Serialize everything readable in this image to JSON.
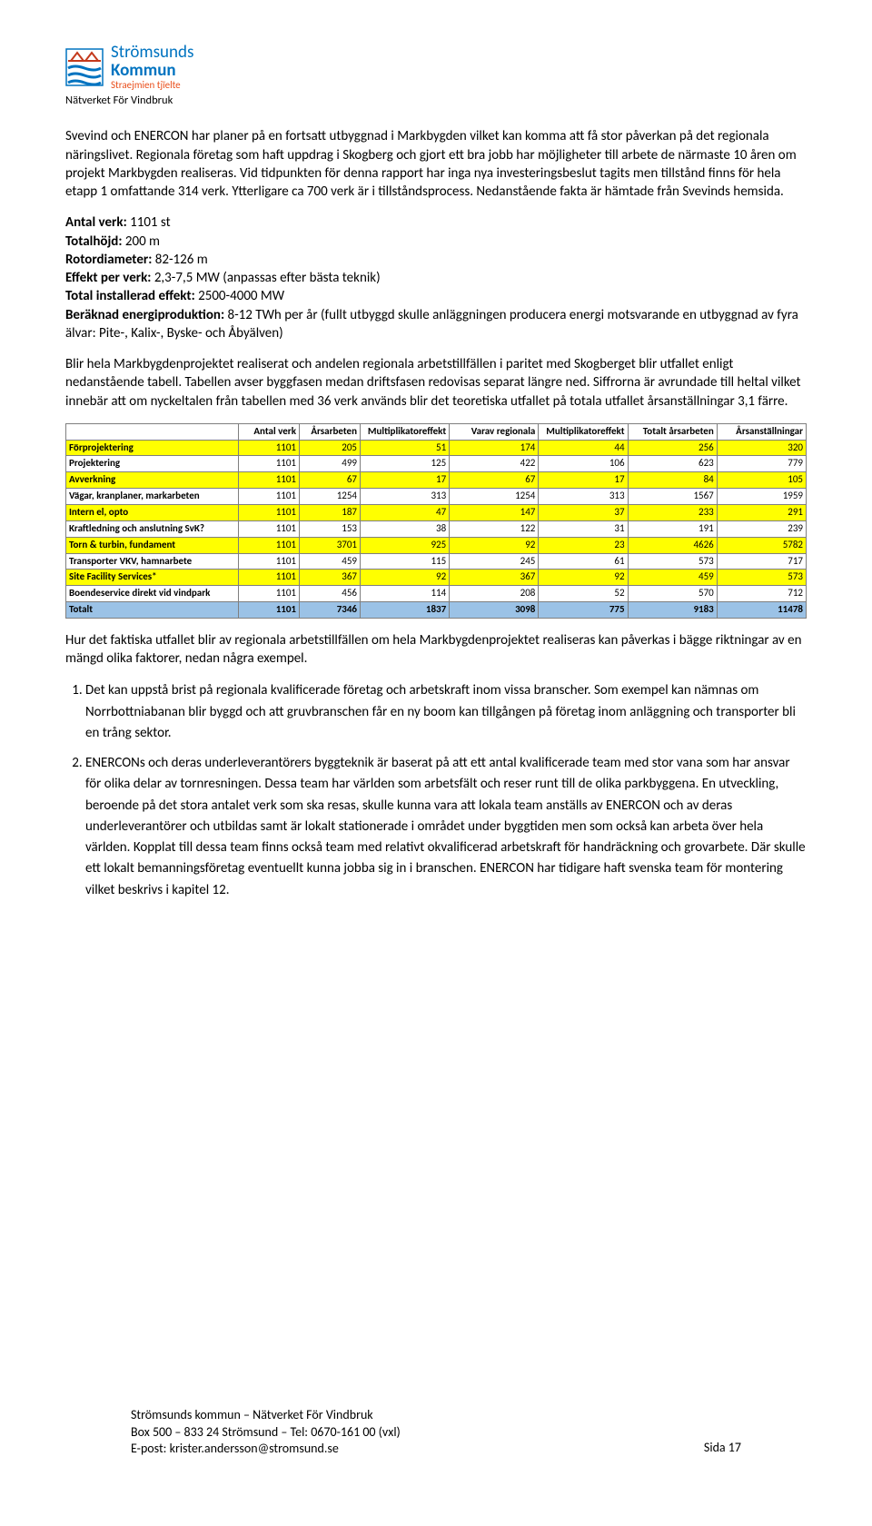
{
  "logo": {
    "top": "Strömsunds",
    "mid": "Kommun",
    "sub": "Straejmien tjïelte",
    "subtitle": "Nätverket För Vindbruk"
  },
  "para1": "Svevind och ENERCON har planer på en fortsatt utbyggnad i Markbygden vilket kan komma att få stor påverkan på det regionala näringslivet. Regionala företag som haft uppdrag i Skogberg och gjort ett bra jobb har möjligheter till arbete de närmaste 10 åren om projekt Markbygden realiseras. Vid tidpunkten för denna rapport har inga nya investeringsbeslut tagits men tillstånd finns för hela etapp 1 omfattande 314 verk. Ytterligare ca 700 verk är i tillståndsprocess. Nedanstående fakta är hämtade från Svevinds hemsida.",
  "specs": [
    {
      "label": "Antal verk:",
      "value": " 1101 st"
    },
    {
      "label": "Totalhöjd:",
      "value": " 200 m"
    },
    {
      "label": "Rotordiameter:",
      "value": " 82-126 m"
    },
    {
      "label": "Effekt per verk:",
      "value": " 2,3-7,5 MW (anpassas efter bästa teknik)"
    },
    {
      "label": "Total installerad effekt:",
      "value": " 2500-4000 MW"
    },
    {
      "label": "Beräknad energiproduktion:",
      "value": " 8-12 TWh per år (fullt utbyggd skulle anläggningen producera energi motsvarande en utbyggnad av fyra älvar: Pite-, Kalix-, Byske- och Åbyälven)"
    }
  ],
  "para2": "Blir hela Markbygdenprojektet realiserat och andelen regionala arbetstillfällen i paritet med Skogberget blir utfallet enligt nedanstående tabell. Tabellen avser byggfasen medan driftsfasen redovisas separat längre ned. Siffrorna är avrundade till heltal vilket innebär att om nyckeltalen från tabellen med 36 verk används blir det teoretiska utfallet på totala utfallet årsanställningar 3,1 färre.",
  "table": {
    "columns": [
      "",
      "Antal verk",
      "Årsarbeten",
      "Multiplikatoreffekt",
      "Varav regionala",
      "Multiplikatoreffekt",
      "Totalt årsarbeten",
      "Årsanställningar"
    ],
    "rows": [
      {
        "hl": true,
        "cells": [
          "Förprojektering",
          "1101",
          "205",
          "51",
          "174",
          "44",
          "256",
          "320"
        ]
      },
      {
        "hl": false,
        "cells": [
          "Projektering",
          "1101",
          "499",
          "125",
          "422",
          "106",
          "623",
          "779"
        ]
      },
      {
        "hl": true,
        "cells": [
          "Avverkning",
          "1101",
          "67",
          "17",
          "67",
          "17",
          "84",
          "105"
        ]
      },
      {
        "hl": false,
        "cells": [
          "Vägar, kranplaner, markarbeten",
          "1101",
          "1254",
          "313",
          "1254",
          "313",
          "1567",
          "1959"
        ]
      },
      {
        "hl": true,
        "cells": [
          "Intern el, opto",
          "1101",
          "187",
          "47",
          "147",
          "37",
          "233",
          "291"
        ]
      },
      {
        "hl": false,
        "cells": [
          "Kraftledning och anslutning SvK?",
          "1101",
          "153",
          "38",
          "122",
          "31",
          "191",
          "239"
        ]
      },
      {
        "hl": true,
        "cells": [
          "Torn & turbin, fundament",
          "1101",
          "3701",
          "925",
          "92",
          "23",
          "4626",
          "5782"
        ]
      },
      {
        "hl": false,
        "cells": [
          "Transporter VKV, hamnarbete",
          "1101",
          "459",
          "115",
          "245",
          "61",
          "573",
          "717"
        ]
      },
      {
        "hl": true,
        "cells": [
          "Site Facility Services*",
          "1101",
          "367",
          "92",
          "367",
          "92",
          "459",
          "573"
        ]
      },
      {
        "hl": false,
        "cells": [
          "Boendeservice direkt vid vindpark",
          "1101",
          "456",
          "114",
          "208",
          "52",
          "570",
          "712"
        ]
      }
    ],
    "total": [
      "Totalt",
      "1101",
      "7346",
      "1837",
      "3098",
      "775",
      "9183",
      "11478"
    ]
  },
  "para3": "Hur det faktiska utfallet blir av regionala arbetstillfällen om hela Markbygdenprojektet realiseras kan påverkas i bägge riktningar av en mängd olika faktorer, nedan några exempel.",
  "list": [
    "Det kan uppstå brist på regionala kvalificerade företag och arbetskraft inom vissa branscher. Som exempel kan nämnas om Norrbottniabanan blir byggd och att gruvbranschen får en ny boom kan tillgången på företag inom anläggning och transporter bli en trång sektor.",
    "ENERCONs och deras underleverantörers byggteknik är baserat på att ett antal kvalificerade team med stor vana som har ansvar för olika delar av tornresningen. Dessa team har världen som arbetsfält och reser runt till de olika parkbyggena. En utveckling, beroende på det stora antalet verk som ska resas, skulle kunna vara att lokala team anställs av ENERCON och av deras underleverantörer och utbildas samt är lokalt stationerade i området under byggtiden men som också kan arbeta över hela världen. Kopplat till dessa team finns också team med relativt okvalificerad arbetskraft för handräckning och grovarbete. Där skulle ett lokalt bemanningsföretag eventuellt kunna jobba sig in i branschen. ENERCON har tidigare haft svenska team för montering vilket beskrivs i kapitel 12."
  ],
  "footer": {
    "l1": "Strömsunds kommun – Nätverket För Vindbruk",
    "l2": "Box 500 – 833 24 Strömsund – Tel: 0670-161 00 (vxl)",
    "l3": "E-post: krister.andersson@stromsund.se",
    "page": "Sida 17"
  }
}
